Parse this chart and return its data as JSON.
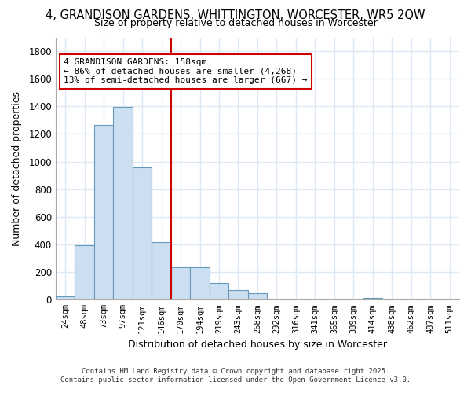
{
  "title_line1": "4, GRANDISON GARDENS, WHITTINGTON, WORCESTER, WR5 2QW",
  "title_line2": "Size of property relative to detached houses in Worcester",
  "xlabel": "Distribution of detached houses by size in Worcester",
  "ylabel": "Number of detached properties",
  "categories": [
    "24sqm",
    "48sqm",
    "73sqm",
    "97sqm",
    "121sqm",
    "146sqm",
    "170sqm",
    "194sqm",
    "219sqm",
    "243sqm",
    "268sqm",
    "292sqm",
    "316sqm",
    "341sqm",
    "365sqm",
    "389sqm",
    "414sqm",
    "438sqm",
    "462sqm",
    "487sqm",
    "511sqm"
  ],
  "values": [
    25,
    395,
    1265,
    1395,
    960,
    415,
    235,
    235,
    120,
    70,
    45,
    10,
    5,
    5,
    5,
    5,
    15,
    5,
    5,
    5,
    5
  ],
  "bar_color": "#ccdff0",
  "bar_edge_color": "#6699bb",
  "background_color": "#ffffff",
  "grid_color": "#dde8f5",
  "vline_x": 5.5,
  "vline_color": "#cc0000",
  "annotation_text": "4 GRANDISON GARDENS: 158sqm\n← 86% of detached houses are smaller (4,268)\n13% of semi-detached houses are larger (667) →",
  "annotation_box_color": "white",
  "annotation_box_edge": "#cc0000",
  "ylim": [
    0,
    1900
  ],
  "yticks": [
    0,
    200,
    400,
    600,
    800,
    1000,
    1200,
    1400,
    1600,
    1800
  ],
  "footer_line1": "Contains HM Land Registry data © Crown copyright and database right 2025.",
  "footer_line2": "Contains public sector information licensed under the Open Government Licence v3.0."
}
